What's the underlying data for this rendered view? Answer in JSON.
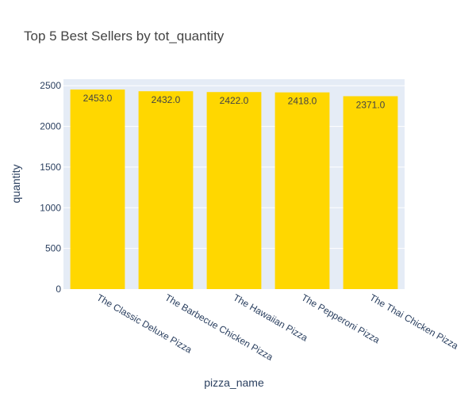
{
  "chart_data": {
    "type": "bar",
    "title": "Top 5 Best Sellers by tot_quantity",
    "xlabel": "pizza_name",
    "ylabel": "quantity",
    "categories": [
      "The Classic Deluxe Pizza",
      "The Barbecue Chicken Pizza",
      "The Hawaiian Pizza",
      "The Pepperoni Pizza",
      "The Thai Chicken Pizza"
    ],
    "values": [
      2453,
      2432,
      2422,
      2418,
      2371
    ],
    "value_labels": [
      "2453.0",
      "2432.0",
      "2422.0",
      "2418.0",
      "2371.0"
    ],
    "ylim": [
      0,
      2580
    ],
    "yticks": [
      0,
      500,
      1000,
      1500,
      2000,
      2500
    ],
    "grid": true,
    "colors": {
      "bar": "#FFD700",
      "plot_background": "#E5ECF6",
      "grid": "#ffffff",
      "title": "#444444",
      "axis_text": "#2a3f5f",
      "value_label": "#444444"
    }
  }
}
